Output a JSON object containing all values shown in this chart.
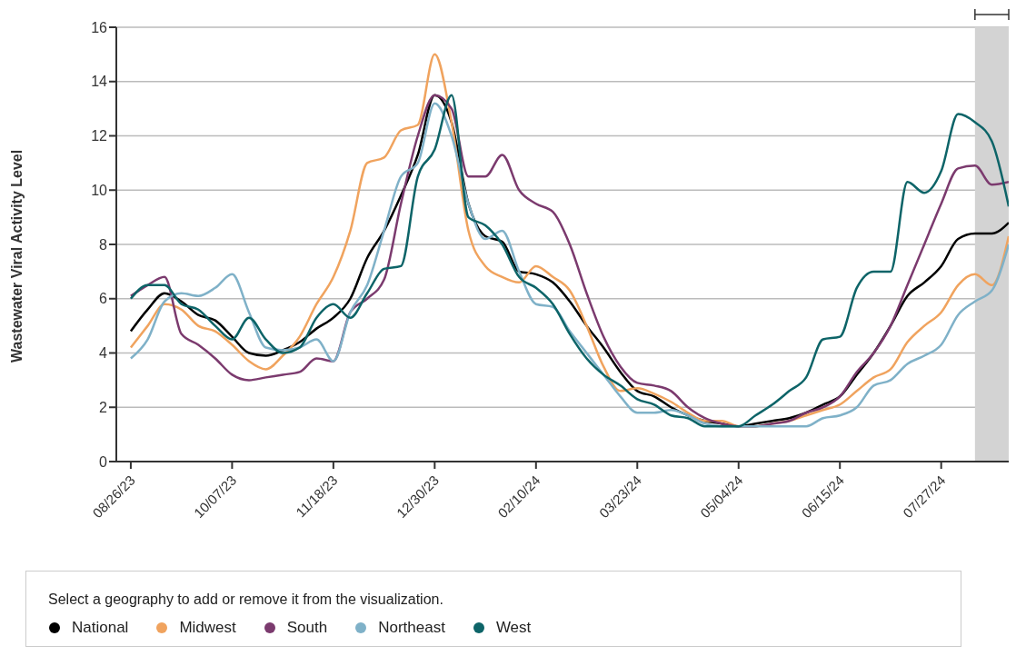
{
  "chart_data": {
    "type": "line",
    "ylabel": "Wastewater Viral Activity Level",
    "legend_title": "Select a geography to add or remove it from the visualization.",
    "legend": "bottom",
    "grid": "y",
    "x": [
      "2023-08-26",
      "2023-09-02",
      "2023-09-09",
      "2023-09-16",
      "2023-09-23",
      "2023-09-30",
      "2023-10-07",
      "2023-10-14",
      "2023-10-21",
      "2023-10-28",
      "2023-11-04",
      "2023-11-11",
      "2023-11-18",
      "2023-11-25",
      "2023-12-02",
      "2023-12-09",
      "2023-12-16",
      "2023-12-23",
      "2023-12-30",
      "2024-01-06",
      "2024-01-13",
      "2024-01-20",
      "2024-01-27",
      "2024-02-03",
      "2024-02-10",
      "2024-02-17",
      "2024-02-24",
      "2024-03-02",
      "2024-03-09",
      "2024-03-16",
      "2024-03-23",
      "2024-03-30",
      "2024-04-06",
      "2024-04-13",
      "2024-04-20",
      "2024-04-27",
      "2024-05-04",
      "2024-05-11",
      "2024-05-18",
      "2024-05-25",
      "2024-06-01",
      "2024-06-08",
      "2024-06-15",
      "2024-06-22",
      "2024-06-29",
      "2024-07-06",
      "2024-07-13",
      "2024-07-20",
      "2024-07-27",
      "2024-08-03",
      "2024-08-10",
      "2024-08-17",
      "2024-08-24"
    ],
    "xlim": [
      "2023-08-20",
      "2024-08-24"
    ],
    "xticks": [
      {
        "value": "2023-08-26",
        "label": "08/26/23"
      },
      {
        "value": "2023-10-07",
        "label": "10/07/23"
      },
      {
        "value": "2023-11-18",
        "label": "11/18/23"
      },
      {
        "value": "2023-12-30",
        "label": "12/30/23"
      },
      {
        "value": "2024-02-10",
        "label": "02/10/24"
      },
      {
        "value": "2024-03-23",
        "label": "03/23/24"
      },
      {
        "value": "2024-05-04",
        "label": "05/04/24"
      },
      {
        "value": "2024-06-15",
        "label": "06/15/24"
      },
      {
        "value": "2024-07-27",
        "label": "07/27/24"
      }
    ],
    "ylim": [
      0,
      16
    ],
    "yticks": [
      0,
      2,
      4,
      6,
      8,
      10,
      12,
      14,
      16
    ],
    "bands": [
      {
        "axis": "x",
        "from": "2024-08-10",
        "to": "2024-08-24",
        "color": "#d3d3d3"
      }
    ],
    "series": [
      {
        "name": "National",
        "color": "#000000",
        "values": [
          4.8,
          5.6,
          6.2,
          5.9,
          5.4,
          5.2,
          4.6,
          4.0,
          3.9,
          4.1,
          4.4,
          4.9,
          5.3,
          6.0,
          7.5,
          8.5,
          9.8,
          11.3,
          13.5,
          12.5,
          9.5,
          8.3,
          8.1,
          7.0,
          6.9,
          6.6,
          5.9,
          5.0,
          4.2,
          3.3,
          2.6,
          2.4,
          2.0,
          1.7,
          1.5,
          1.4,
          1.3,
          1.4,
          1.5,
          1.6,
          1.8,
          2.1,
          2.4,
          3.2,
          4.0,
          5.0,
          6.1,
          6.6,
          7.2,
          8.2,
          8.4,
          8.4,
          8.8
        ]
      },
      {
        "name": "Midwest",
        "color": "#f0a35e",
        "values": [
          4.2,
          5.0,
          5.8,
          5.6,
          5.0,
          4.8,
          4.3,
          3.7,
          3.4,
          3.9,
          4.6,
          5.8,
          6.8,
          8.5,
          11.0,
          11.2,
          12.2,
          12.4,
          15.0,
          12.5,
          8.5,
          7.2,
          6.8,
          6.6,
          7.2,
          6.8,
          6.3,
          5.0,
          3.5,
          2.6,
          2.7,
          2.5,
          2.2,
          1.8,
          1.5,
          1.5,
          1.3,
          1.3,
          1.4,
          1.5,
          1.7,
          1.9,
          2.1,
          2.6,
          3.1,
          3.4,
          4.4,
          5.0,
          5.5,
          6.5,
          6.9,
          6.5,
          8.3
        ]
      },
      {
        "name": "South",
        "color": "#7b3a6e",
        "values": [
          6.1,
          6.5,
          6.8,
          4.7,
          4.3,
          3.8,
          3.2,
          3.0,
          3.1,
          3.2,
          3.3,
          3.8,
          3.7,
          5.5,
          6.0,
          6.7,
          9.5,
          12.0,
          13.5,
          13.0,
          10.5,
          10.5,
          11.3,
          10.0,
          9.5,
          9.2,
          8.0,
          6.2,
          4.6,
          3.5,
          2.9,
          2.8,
          2.6,
          2.0,
          1.6,
          1.4,
          1.3,
          1.3,
          1.4,
          1.5,
          1.8,
          2.0,
          2.4,
          3.3,
          4.0,
          5.0,
          6.5,
          8.0,
          9.5,
          10.8,
          10.9,
          10.2,
          10.3
        ]
      },
      {
        "name": "Northeast",
        "color": "#7fb1c8",
        "values": [
          3.8,
          4.5,
          5.9,
          6.2,
          6.1,
          6.4,
          6.9,
          5.5,
          4.2,
          4.1,
          4.2,
          4.5,
          3.7,
          5.5,
          6.5,
          8.5,
          10.5,
          11.0,
          13.2,
          12.0,
          9.5,
          8.2,
          8.5,
          7.0,
          5.8,
          5.7,
          4.8,
          4.0,
          3.2,
          2.4,
          1.8,
          1.8,
          1.9,
          1.7,
          1.4,
          1.3,
          1.3,
          1.3,
          1.3,
          1.3,
          1.3,
          1.6,
          1.7,
          2.0,
          2.8,
          3.0,
          3.6,
          3.9,
          4.3,
          5.4,
          5.9,
          6.3,
          8.0
        ]
      },
      {
        "name": "West",
        "color": "#0d6468",
        "values": [
          6.0,
          6.5,
          6.5,
          5.8,
          5.6,
          5.0,
          4.5,
          5.3,
          4.5,
          4.0,
          4.2,
          5.3,
          5.8,
          5.3,
          6.2,
          7.1,
          7.2,
          10.5,
          11.5,
          13.5,
          9.0,
          8.7,
          8.0,
          6.8,
          6.4,
          5.8,
          4.7,
          3.8,
          3.2,
          2.8,
          2.3,
          2.1,
          1.7,
          1.6,
          1.3,
          1.3,
          1.3,
          1.7,
          2.1,
          2.6,
          3.1,
          4.5,
          4.6,
          6.4,
          7.0,
          7.0,
          10.3,
          9.9,
          10.7,
          12.8,
          12.5,
          11.8,
          9.4
        ]
      }
    ]
  }
}
